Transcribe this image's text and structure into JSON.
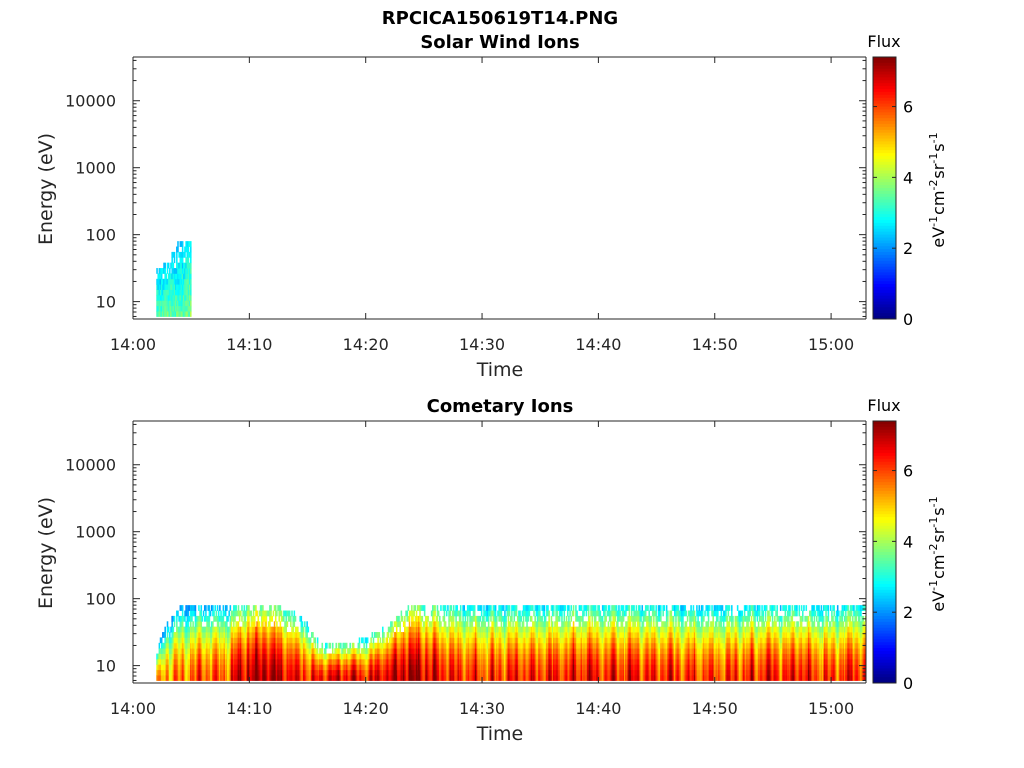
{
  "figure": {
    "filename_title": "RPCICA150619T14.PNG"
  },
  "colors": {
    "axis": "#262626",
    "colormap": "jet",
    "colormap_stops": [
      "#00007f",
      "#0000ff",
      "#007fff",
      "#00ffff",
      "#7fff7f",
      "#ffff00",
      "#ff7f00",
      "#ff0000",
      "#7f0000"
    ]
  },
  "chart_data": [
    {
      "type": "heatmap",
      "title": "Solar Wind Ions",
      "xlabel": "Time",
      "ylabel": "Energy (eV)",
      "yscale": "log",
      "xlim": [
        "14:00",
        "15:03"
      ],
      "ylim": [
        5.5,
        45000
      ],
      "xticks": [
        "14:00",
        "14:10",
        "14:20",
        "14:30",
        "14:40",
        "14:50",
        "15:00"
      ],
      "yticks": [
        "10",
        "100",
        "1000",
        "10000"
      ],
      "colorbar": {
        "title": "Flux",
        "unit_base": [
          "eV",
          "cm",
          "sr",
          "s"
        ],
        "unit_exp": [
          "-1",
          "-2",
          "-1",
          "-1"
        ],
        "range": [
          0,
          7.4
        ],
        "ticks": [
          "0",
          "2",
          "4",
          "6"
        ]
      },
      "nonzero_region": {
        "t_start": "14:02",
        "t_end": "14:05",
        "e_min": 6,
        "e_max": 80
      },
      "profile": [
        {
          "t": "14:02",
          "e_low": 6,
          "e_high": 30,
          "flux": 3.4
        },
        {
          "t": "14:03",
          "e_low": 6,
          "e_high": 40,
          "flux": 3.6
        },
        {
          "t": "14:04",
          "e_low": 6,
          "e_high": 80,
          "flux": 3.4
        },
        {
          "t": "14:05",
          "e_low": 6,
          "e_high": 80,
          "flux": 3.8
        }
      ]
    },
    {
      "type": "heatmap",
      "title": "Cometary Ions",
      "xlabel": "Time",
      "ylabel": "Energy (eV)",
      "yscale": "log",
      "xlim": [
        "14:00",
        "15:03"
      ],
      "ylim": [
        5.5,
        45000
      ],
      "xticks": [
        "14:00",
        "14:10",
        "14:20",
        "14:30",
        "14:40",
        "14:50",
        "15:00"
      ],
      "yticks": [
        "10",
        "100",
        "1000",
        "10000"
      ],
      "colorbar": {
        "title": "Flux",
        "unit_base": [
          "eV",
          "cm",
          "sr",
          "s"
        ],
        "unit_exp": [
          "-1",
          "-2",
          "-1",
          "-1"
        ],
        "range": [
          0,
          7.4
        ],
        "ticks": [
          "0",
          "2",
          "4",
          "6"
        ]
      },
      "nonzero_region": {
        "t_start": "14:02",
        "t_end": "15:03",
        "e_min": 6,
        "e_max": 80
      },
      "profile": [
        {
          "t": "14:02",
          "e_high": 15,
          "flux": 5.3
        },
        {
          "t": "14:04",
          "e_high": 75,
          "flux": 5.6
        },
        {
          "t": "14:06",
          "e_high": 75,
          "flux": 5.8
        },
        {
          "t": "14:08",
          "e_high": 75,
          "flux": 6.0
        },
        {
          "t": "14:10",
          "e_high": 80,
          "flux": 7.0
        },
        {
          "t": "14:12",
          "e_high": 80,
          "flux": 7.1
        },
        {
          "t": "14:14",
          "e_high": 60,
          "flux": 6.5
        },
        {
          "t": "14:16",
          "e_high": 22,
          "flux": 6.3
        },
        {
          "t": "14:18",
          "e_high": 22,
          "flux": 6.6
        },
        {
          "t": "14:20",
          "e_high": 25,
          "flux": 6.4
        },
        {
          "t": "14:22",
          "e_high": 40,
          "flux": 6.9
        },
        {
          "t": "14:24",
          "e_high": 80,
          "flux": 7.2
        },
        {
          "t": "14:26",
          "e_high": 80,
          "flux": 6.6
        },
        {
          "t": "14:28",
          "e_high": 80,
          "flux": 6.3
        },
        {
          "t": "14:30",
          "e_high": 80,
          "flux": 6.1
        },
        {
          "t": "14:35",
          "e_high": 75,
          "flux": 6.3
        },
        {
          "t": "14:40",
          "e_high": 78,
          "flux": 6.5
        },
        {
          "t": "14:45",
          "e_high": 78,
          "flux": 6.3
        },
        {
          "t": "14:50",
          "e_high": 78,
          "flux": 6.0
        },
        {
          "t": "14:55",
          "e_high": 78,
          "flux": 6.3
        },
        {
          "t": "15:00",
          "e_high": 78,
          "flux": 6.1
        },
        {
          "t": "15:03",
          "e_high": 80,
          "flux": 6.4
        }
      ]
    }
  ]
}
